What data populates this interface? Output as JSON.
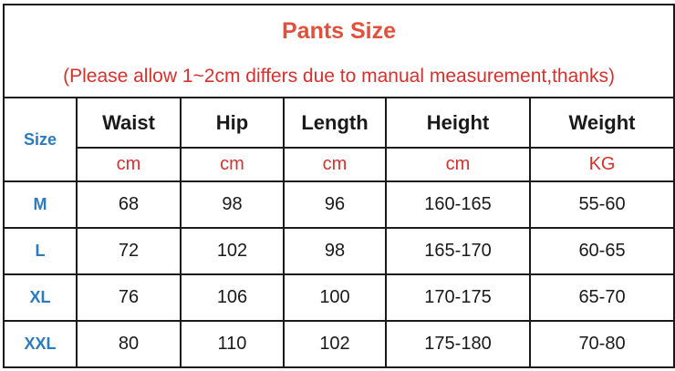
{
  "title": "Pants Size",
  "subtitle": "(Please allow 1~2cm differs due to manual measurement,thanks)",
  "size_header": "Size",
  "columns": [
    {
      "label": "Waist",
      "unit": "cm"
    },
    {
      "label": "Hip",
      "unit": "cm"
    },
    {
      "label": "Length",
      "unit": "cm"
    },
    {
      "label": "Height",
      "unit": "cm"
    },
    {
      "label": "Weight",
      "unit": "KG"
    }
  ],
  "rows": [
    {
      "size": "M",
      "values": [
        "68",
        "98",
        "96",
        "160-165",
        "55-60"
      ]
    },
    {
      "size": "L",
      "values": [
        "72",
        "102",
        "98",
        "165-170",
        "60-65"
      ]
    },
    {
      "size": "XL",
      "values": [
        "76",
        "106",
        "100",
        "170-175",
        "65-70"
      ]
    },
    {
      "size": "XXL",
      "values": [
        "80",
        "110",
        "102",
        "175-180",
        "70-80"
      ]
    }
  ],
  "colors": {
    "title": "#e0503c",
    "unit": "#d9302c",
    "size": "#2a7bbf"
  }
}
